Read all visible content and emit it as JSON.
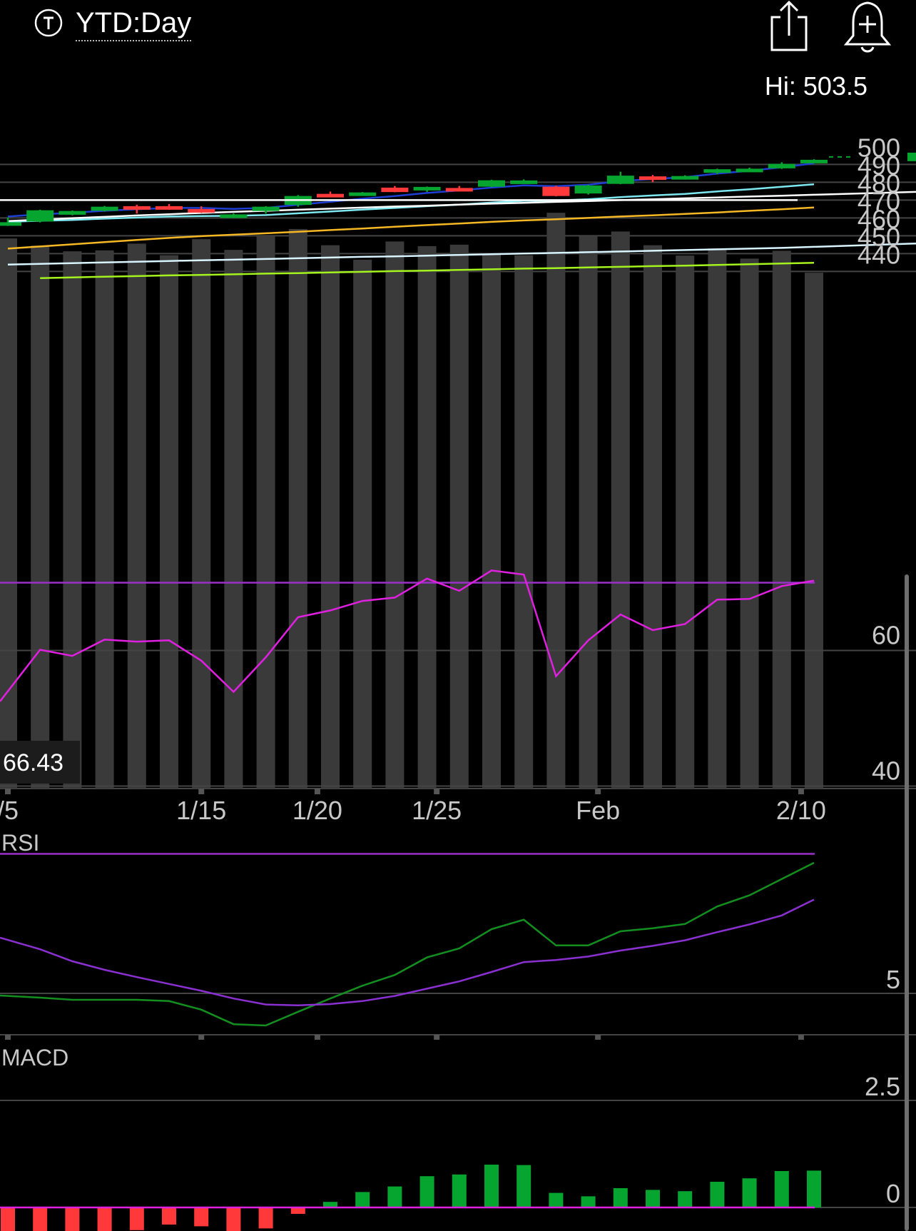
{
  "header": {
    "title": "YTD:Day",
    "hi_label": "Hi: 503.5",
    "icons": [
      "t-badge-icon",
      "share-icon",
      "add-alert-icon"
    ]
  },
  "colors": {
    "up": "#06a530",
    "down": "#ff3939",
    "volume": "#3a3a3a",
    "ma_blue": "#1f3fd4",
    "ma_cyan": "#7ee8f0",
    "ma_white": "#ffffff",
    "ma_orange": "#f5b824",
    "ma_lightblue": "#d8f4ff",
    "ma_lime": "#a4f21e",
    "rsi": "#e020e0",
    "rsi_band": "#9b30c8",
    "macd_line": "#138f20",
    "macd_signal": "#8a30d0",
    "grid": "#444444",
    "level_line": "#ffffff"
  },
  "chart_data": [
    {
      "type": "candlestick",
      "title": "",
      "y_ticks": [
        500,
        490,
        480,
        470,
        460,
        450,
        440
      ],
      "ylim": [
        433,
        504
      ],
      "x_tick_labels": [
        {
          "label": "/5",
          "index": 0
        },
        {
          "label": "1/15",
          "index": 6
        },
        {
          "label": "1/20",
          "index": 9.6
        },
        {
          "label": "1/25",
          "index": 13.3
        },
        {
          "label": "Feb",
          "index": 18.3
        },
        {
          "label": "2/10",
          "index": 24.6
        }
      ],
      "hi": 503.5,
      "level_line": 480,
      "volume_readout": "66.43",
      "candles": [
        {
          "o": 467.0,
          "h": 470.2,
          "l": 465.5,
          "c": 467.6
        },
        {
          "o": 468.0,
          "h": 474.6,
          "l": 467.5,
          "c": 474.3
        },
        {
          "o": 471.8,
          "h": 474.2,
          "l": 471.5,
          "c": 473.9
        },
        {
          "o": 474.0,
          "h": 476.7,
          "l": 473.6,
          "c": 476.3
        },
        {
          "o": 476.6,
          "h": 477.4,
          "l": 472.5,
          "c": 475.3
        },
        {
          "o": 476.6,
          "h": 477.8,
          "l": 474.6,
          "c": 475.5
        },
        {
          "o": 475.0,
          "h": 476.5,
          "l": 472.8,
          "c": 474.7
        },
        {
          "o": 471.5,
          "h": 472.6,
          "l": 469.9,
          "c": 472.0
        },
        {
          "o": 473.9,
          "h": 476.6,
          "l": 472.4,
          "c": 476.3
        },
        {
          "o": 477.3,
          "h": 482.8,
          "l": 476.3,
          "c": 482.3
        },
        {
          "o": 483.5,
          "h": 484.8,
          "l": 482.5,
          "c": 483.0
        },
        {
          "o": 483.4,
          "h": 484.5,
          "l": 482.4,
          "c": 484.3
        },
        {
          "o": 487.0,
          "h": 487.9,
          "l": 484.4,
          "c": 484.5
        },
        {
          "o": 487.1,
          "h": 487.6,
          "l": 484.6,
          "c": 487.4
        },
        {
          "o": 486.8,
          "h": 487.9,
          "l": 485.1,
          "c": 486.5
        },
        {
          "o": 487.5,
          "h": 491.4,
          "l": 487.2,
          "c": 491.1
        },
        {
          "o": 490.8,
          "h": 491.6,
          "l": 490.1,
          "c": 491.0
        },
        {
          "o": 487.5,
          "h": 488.0,
          "l": 482.1,
          "c": 482.3
        },
        {
          "o": 483.7,
          "h": 488.6,
          "l": 483.1,
          "c": 488.2
        },
        {
          "o": 489.1,
          "h": 495.9,
          "l": 488.9,
          "c": 493.7
        },
        {
          "o": 493.3,
          "h": 494.1,
          "l": 490.1,
          "c": 492.0
        },
        {
          "o": 493.2,
          "h": 493.9,
          "l": 491.5,
          "c": 493.5
        },
        {
          "o": 495.5,
          "h": 497.6,
          "l": 494.6,
          "c": 497.3
        },
        {
          "o": 497.5,
          "h": 498.2,
          "l": 496.2,
          "c": 497.6
        },
        {
          "o": 497.8,
          "h": 501.2,
          "l": 497.5,
          "c": 500.3
        },
        {
          "o": 501.0,
          "h": 502.9,
          "l": 500.8,
          "c": 502.6
        }
      ],
      "volume": [
        458.5,
        454.5,
        451.3,
        451.8,
        455.6,
        449.1,
        458.1,
        452.1,
        459.7,
        463.8,
        454.7,
        446.6,
        456.8,
        454.2,
        455.0,
        450.0,
        449.1,
        472.9,
        459.8,
        462.4,
        454.7,
        448.9,
        452.9,
        447.2,
        451.6,
        439.3
      ],
      "series": [
        {
          "name": "",
          "color_key": "ma_blue",
          "values": [
            470.8,
            472.0,
            472.9,
            474.0,
            474.9,
            475.6,
            475.6,
            475.1,
            475.6,
            477.4,
            479.1,
            480.8,
            482.3,
            484.0,
            485.4,
            487.0,
            488.3,
            487.8,
            488.6,
            490.7,
            491.8,
            492.9,
            494.9,
            496.4,
            498.4,
            500.6
          ]
        },
        {
          "name": "",
          "color_key": "ma_cyan",
          "values": [
            467.9,
            468.4,
            468.9,
            469.6,
            470.2,
            470.8,
            471.1,
            471.2,
            471.6,
            472.6,
            473.6,
            474.7,
            475.6,
            476.6,
            477.5,
            478.6,
            479.6,
            479.8,
            480.5,
            481.7,
            482.6,
            483.5,
            484.9,
            486.1,
            487.5,
            488.9
          ]
        },
        {
          "name": "",
          "color_key": "ma_white",
          "values": [
            468.3,
            469.1,
            469.9,
            470.6,
            471.4,
            472.1,
            472.8,
            473.4,
            474.0,
            474.6,
            475.2,
            475.8,
            476.4,
            476.9,
            477.5,
            478.0,
            478.5,
            479.0,
            479.5,
            480.0,
            480.5,
            481.0,
            481.5,
            482.0,
            482.5,
            483.0
          ]
        },
        {
          "name": "",
          "color_key": "ma_orange",
          "values": [
            452.8,
            454.0,
            455.2,
            456.5,
            457.7,
            458.8,
            459.8,
            460.6,
            461.4,
            462.3,
            463.2,
            464.1,
            465.1,
            466.0,
            466.9,
            467.8,
            468.6,
            469.3,
            470.0,
            470.8,
            471.5,
            472.3,
            473.1,
            474.0,
            474.9,
            475.9
          ]
        },
        {
          "name": "",
          "color_key": "ma_lightblue",
          "values": [
            443.9,
            444.3,
            444.7,
            445.1,
            445.5,
            445.9,
            446.3,
            446.6,
            447.0,
            447.4,
            447.8,
            448.2,
            448.5,
            448.9,
            449.3,
            449.7,
            450.1,
            450.4,
            450.8,
            451.2,
            451.6,
            452.0,
            452.4,
            452.8,
            453.2,
            453.8
          ]
        },
        {
          "name": "",
          "color_key": "ma_lime",
          "values": [
            null,
            436.3,
            436.7,
            437.1,
            437.4,
            437.8,
            438.1,
            438.4,
            438.8,
            439.1,
            439.5,
            439.8,
            440.2,
            440.5,
            440.9,
            441.2,
            441.6,
            441.9,
            442.3,
            442.6,
            443.0,
            443.3,
            443.7,
            444.1,
            444.5,
            444.9
          ]
        }
      ]
    },
    {
      "type": "line",
      "title": "RSI",
      "y_ticks": [
        60,
        40
      ],
      "ylim": [
        28,
        76
      ],
      "bands": [
        70,
        30
      ],
      "series": [
        {
          "name": "",
          "color_key": "rsi",
          "values": [
            52.5,
            60.1,
            59.2,
            61.6,
            61.3,
            61.5,
            58.5,
            53.9,
            59.0,
            64.9,
            65.9,
            67.3,
            67.8,
            70.6,
            68.8,
            71.8,
            71.2,
            56.2,
            61.5,
            65.3,
            63.0,
            63.9,
            67.5,
            67.6,
            69.5,
            70.3
          ]
        }
      ]
    },
    {
      "type": "line",
      "title": "MACD",
      "y_ticks": [
        5,
        2.5,
        0
      ],
      "ylim": [
        -1.35,
        8.3
      ],
      "series": [
        {
          "name": "",
          "color_key": "macd_line",
          "values": [
            4.95,
            4.9,
            4.85,
            4.85,
            4.85,
            4.82,
            4.62,
            4.28,
            4.25,
            4.57,
            4.88,
            5.18,
            5.43,
            5.84,
            6.05,
            6.5,
            6.72,
            6.12,
            6.12,
            6.45,
            6.52,
            6.62,
            7.03,
            7.29,
            7.67,
            8.05
          ]
        },
        {
          "name": "",
          "color_key": "macd_signal",
          "values": [
            6.3,
            6.03,
            5.75,
            5.55,
            5.38,
            5.22,
            5.06,
            4.88,
            4.74,
            4.72,
            4.75,
            4.82,
            4.94,
            5.11,
            5.28,
            5.5,
            5.73,
            5.78,
            5.86,
            6.0,
            6.11,
            6.24,
            6.43,
            6.61,
            6.82,
            7.19
          ]
        },
        {
          "name": "",
          "type": "histogram",
          "values": [
            -1.35,
            -1.13,
            -0.9,
            -0.7,
            -0.53,
            -0.4,
            -0.44,
            -0.6,
            -0.49,
            -0.15,
            0.13,
            0.36,
            0.49,
            0.73,
            0.77,
            1.0,
            0.99,
            0.34,
            0.26,
            0.45,
            0.41,
            0.38,
            0.6,
            0.68,
            0.85,
            0.86
          ]
        }
      ]
    }
  ]
}
